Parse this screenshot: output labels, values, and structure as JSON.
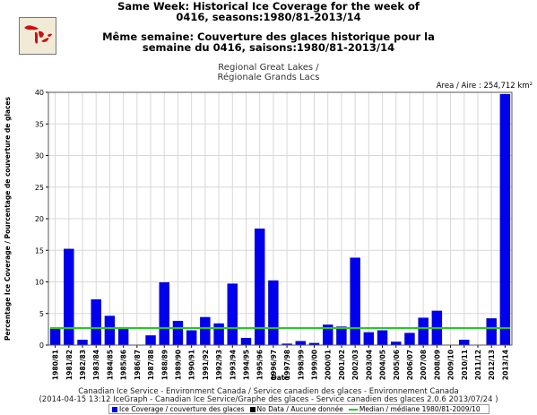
{
  "header": {
    "title_line1": "Same Week: Historical Ice Coverage for the week of",
    "title_line2": "0416, seasons:1980/81-2013/14",
    "title_fr_line1": "Même semaine: Couverture des glaces historique pour la",
    "title_fr_line2": "semaine du 0416, saisons:1980/81-2013/14",
    "region_en": "Regional Great Lakes /",
    "region_fr": "Régionale Grands Lacs",
    "area_label": "Area / Aire : 254,712 km²"
  },
  "footer": {
    "line1": "Canadian Ice Service - Environment Canada / Service canadien des glaces - Environnement Canada",
    "line2": "(2014-04-15 13:12 IceGraph - Canadian Ice Service/Graphe des glaces - Service canadien des glaces 2.0.6 2013/07/24 )"
  },
  "colors": {
    "bar": "#0000ee",
    "bar_edge": "#0000aa",
    "median": "#22cc22",
    "no_data": "#000000",
    "grid": "#d8d8d8"
  },
  "icons": {
    "logo": "great-lakes-map-icon"
  },
  "chart_data": {
    "type": "bar",
    "xlabel": "Date",
    "ylabel": "Percentage Ice Coverage / Pourcentage de couverture de glaces",
    "ylim": [
      0,
      40
    ],
    "yticks": [
      0,
      5,
      10,
      15,
      20,
      25,
      30,
      35,
      40
    ],
    "grid": true,
    "legend_position": "bottom",
    "categories": [
      "1980/81",
      "1981/82",
      "1982/83",
      "1983/84",
      "1984/85",
      "1985/86",
      "1986/87",
      "1987/88",
      "1988/89",
      "1989/90",
      "1990/91",
      "1991/92",
      "1992/93",
      "1993/94",
      "1994/95",
      "1995/96",
      "1996/97",
      "1997/98",
      "1998/99",
      "1999/00",
      "2000/01",
      "2001/02",
      "2002/03",
      "2003/04",
      "2004/05",
      "2005/06",
      "2006/07",
      "2007/08",
      "2008/09",
      "2009/10",
      "2010/11",
      "2011/12",
      "2012/13",
      "2013/14"
    ],
    "series": [
      {
        "name": "Ice Coverage / couverture des glaces",
        "values": [
          2.6,
          15.2,
          0.8,
          7.2,
          4.6,
          2.5,
          0.0,
          1.5,
          9.9,
          3.8,
          2.3,
          4.4,
          3.4,
          9.7,
          1.1,
          18.4,
          10.2,
          0.2,
          0.6,
          0.3,
          3.2,
          2.9,
          13.8,
          2.0,
          2.3,
          0.5,
          1.9,
          4.3,
          5.4,
          0.0,
          0.8,
          0.0,
          4.2,
          39.7
        ]
      }
    ],
    "median": {
      "name": "Median / médiane 1980/81-2009/10",
      "value": 2.7
    },
    "no_data_label": "No Data / Aucune donnée"
  }
}
